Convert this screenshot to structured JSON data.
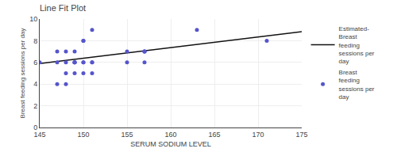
{
  "chart_data": {
    "type": "scatter",
    "title": "Line Fit Plot",
    "xlabel": "SERUM SODIUM LEVEL",
    "ylabel": "Breast feeding sessions per day",
    "xlim": [
      145,
      175
    ],
    "ylim": [
      0,
      10
    ],
    "xticks": [
      145,
      150,
      155,
      160,
      165,
      170,
      175
    ],
    "yticks": [
      0,
      2,
      4,
      6,
      8,
      10
    ],
    "grid": true,
    "legend": "right",
    "series": [
      {
        "name": "Estimated-\nBreast\nfeeding\nsessions per\nday",
        "type": "line",
        "line_style": "solid",
        "color": "#111111",
        "x": [
          145,
          175
        ],
        "values": [
          5.9,
          8.837
        ]
      },
      {
        "name": "Breast\nfeeding\nsessions per\nday",
        "type": "scatter",
        "marker": "circle",
        "color": "#5555cc",
        "x": [
          145,
          147,
          147,
          147,
          148,
          148,
          148,
          148,
          149,
          149,
          149,
          149,
          149,
          149,
          150,
          150,
          150,
          150,
          150,
          151,
          151,
          151,
          151,
          155,
          155,
          157,
          157,
          157,
          157,
          163,
          171
        ],
        "values": [
          6,
          7,
          6,
          4,
          7,
          6,
          5,
          4,
          7,
          6,
          6,
          6,
          5,
          6,
          8,
          8,
          6,
          6,
          5,
          9,
          6,
          5,
          6,
          7,
          6,
          7,
          7,
          7,
          6,
          9,
          8
        ]
      }
    ]
  }
}
